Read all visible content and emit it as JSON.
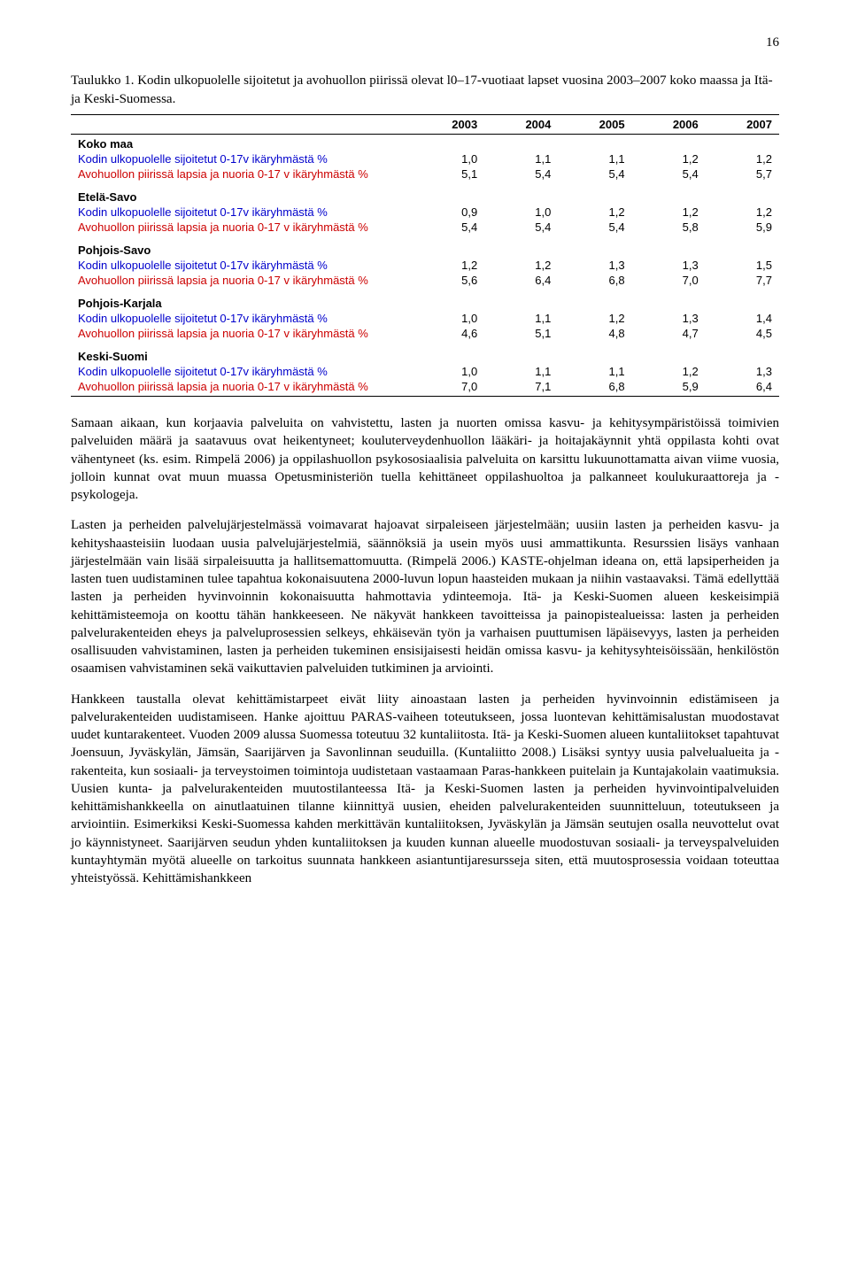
{
  "page_number": "16",
  "caption": "Taulukko 1. Kodin ulkopuolelle sijoitetut ja avohuollon piirissä olevat l0–17-vuotiaat lapset vuosina 2003–2007 koko maassa ja Itä- ja Keski-Suomessa.",
  "table": {
    "years": [
      "2003",
      "2004",
      "2005",
      "2006",
      "2007"
    ],
    "groups": [
      {
        "name": "Koko maa",
        "rows": [
          {
            "label": "Kodin ulkopuolelle sijoitetut 0-17v ikäryhmästä %",
            "class": "blue",
            "v": [
              "1,0",
              "1,1",
              "1,1",
              "1,2",
              "1,2"
            ]
          },
          {
            "label": "Avohuollon piirissä lapsia ja nuoria 0-17 v ikäryhmästä %",
            "class": "red",
            "v": [
              "5,1",
              "5,4",
              "5,4",
              "5,4",
              "5,7"
            ]
          }
        ]
      },
      {
        "name": "Etelä-Savo",
        "rows": [
          {
            "label": "Kodin ulkopuolelle sijoitetut 0-17v ikäryhmästä %",
            "class": "blue",
            "v": [
              "0,9",
              "1,0",
              "1,2",
              "1,2",
              "1,2"
            ]
          },
          {
            "label": "Avohuollon piirissä lapsia ja nuoria 0-17 v ikäryhmästä %",
            "class": "red",
            "v": [
              "5,4",
              "5,4",
              "5,4",
              "5,8",
              "5,9"
            ]
          }
        ]
      },
      {
        "name": "Pohjois-Savo",
        "rows": [
          {
            "label": "Kodin ulkopuolelle sijoitetut 0-17v ikäryhmästä %",
            "class": "blue",
            "v": [
              "1,2",
              "1,2",
              "1,3",
              "1,3",
              "1,5"
            ]
          },
          {
            "label": "Avohuollon piirissä lapsia ja nuoria 0-17 v ikäryhmästä %",
            "class": "red",
            "v": [
              "5,6",
              "6,4",
              "6,8",
              "7,0",
              "7,7"
            ]
          }
        ]
      },
      {
        "name": "Pohjois-Karjala",
        "rows": [
          {
            "label": "Kodin ulkopuolelle sijoitetut 0-17v ikäryhmästä %",
            "class": "blue",
            "v": [
              "1,0",
              "1,1",
              "1,2",
              "1,3",
              "1,4"
            ]
          },
          {
            "label": "Avohuollon piirissä lapsia ja nuoria 0-17 v ikäryhmästä %",
            "class": "red",
            "v": [
              "4,6",
              "5,1",
              "4,8",
              "4,7",
              "4,5"
            ]
          }
        ]
      },
      {
        "name": "Keski-Suomi",
        "rows": [
          {
            "label": "Kodin ulkopuolelle sijoitetut 0-17v ikäryhmästä %",
            "class": "blue",
            "v": [
              "1,0",
              "1,1",
              "1,1",
              "1,2",
              "1,3"
            ]
          },
          {
            "label": "Avohuollon piirissä lapsia ja nuoria 0-17 v ikäryhmästä %",
            "class": "red",
            "v": [
              "7,0",
              "7,1",
              "6,8",
              "5,9",
              "6,4"
            ]
          }
        ]
      }
    ]
  },
  "paragraphs": [
    "Samaan aikaan, kun korjaavia palveluita on vahvistettu, lasten ja nuorten omissa kasvu- ja kehitysympäristöissä toimivien palveluiden määrä ja saatavuus ovat heikentyneet; kouluterveydenhuollon lääkäri- ja hoitajakäynnit yhtä oppilasta kohti ovat vähentyneet (ks. esim. Rimpelä 2006) ja oppilashuollon psykososiaalisia palveluita on karsittu lukuunottamatta aivan viime vuosia, jolloin kunnat ovat muun muassa Opetusministeriön tuella kehittäneet oppilashuoltoa ja palkanneet koulukuraattoreja ja -psykologeja.",
    "Lasten ja perheiden palvelujärjestelmässä voimavarat hajoavat sirpaleiseen järjestelmään; uusiin lasten ja perheiden kasvu- ja kehityshaasteisiin luodaan uusia palvelujärjestelmiä, säännöksiä ja usein myös uusi ammattikunta. Resurssien lisäys vanhaan järjestelmään vain lisää sirpaleisuutta ja hallitsemattomuutta. (Rimpelä 2006.) KASTE-ohjelman ideana on, että lapsiperheiden ja lasten tuen uudistaminen tulee tapahtua kokonaisuutena 2000-luvun lopun haasteiden mukaan ja niihin vastaavaksi. Tämä edellyttää lasten ja perheiden hyvinvoinnin kokonaisuutta hahmottavia ydinteemoja. Itä- ja Keski-Suomen alueen keskeisimpiä kehittämisteemoja on koottu tähän hankkeeseen. Ne näkyvät hankkeen tavoitteissa ja painopistealueissa: lasten ja perheiden palvelurakenteiden eheys ja palveluprosessien selkeys, ehkäisevän työn ja varhaisen puuttumisen läpäisevyys, lasten ja perheiden osallisuuden vahvistaminen, lasten ja perheiden tukeminen ensisijaisesti heidän omissa kasvu- ja kehitysyhteisöissään, henkilöstön osaamisen vahvistaminen sekä vaikuttavien palveluiden tutkiminen ja arviointi.",
    "Hankkeen taustalla olevat kehittämistarpeet eivät liity ainoastaan lasten ja perheiden hyvinvoinnin edistämiseen ja palvelurakenteiden uudistamiseen. Hanke ajoittuu PARAS-vaiheen toteutukseen, jossa luontevan kehittämisalustan muodostavat uudet kuntarakenteet. Vuoden 2009 alussa Suomessa toteutuu 32 kuntaliitosta. Itä- ja Keski-Suomen alueen kuntaliitokset tapahtuvat Joensuun, Jyväskylän, Jämsän, Saarijärven ja Savonlinnan seuduilla. (Kuntaliitto 2008.) Lisäksi syntyy uusia palvelualueita ja -rakenteita, kun sosiaali- ja terveystoimen toimintoja uudistetaan vastaamaan Paras-hankkeen puitelain ja Kuntajakolain vaatimuksia. Uusien kunta- ja palvelurakenteiden muutostilanteessa Itä- ja Keski-Suomen lasten ja perheiden hyvinvointipalveluiden kehittämishankkeella on ainutlaatuinen tilanne kiinnittyä uusien, eheiden palvelurakenteiden suunnitteluun, toteutukseen ja arviointiin. Esimerkiksi Keski-Suomessa kahden merkittävän kuntaliitoksen, Jyväskylän ja Jämsän seutujen osalla neuvottelut ovat jo käynnistyneet. Saarijärven seudun yhden kuntaliitoksen ja kuuden kunnan alueelle muodostuvan sosiaali- ja terveyspalveluiden kuntayhtymän myötä alueelle on tarkoitus suunnata hankkeen asiantuntijaresursseja siten, että muutosprosessia voidaan toteuttaa yhteistyössä. Kehittämishankkeen"
  ]
}
